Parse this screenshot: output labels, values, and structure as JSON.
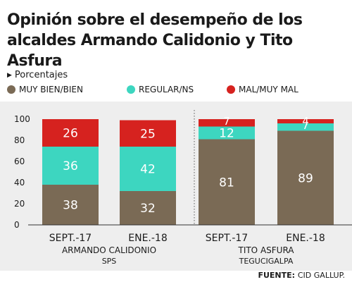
{
  "title_line1": "Opinión sobre el desempeño de los",
  "title_line2": "alcaldes Armando Calidonio y Tito Asfura",
  "units_label": "Porcentajes",
  "legend": [
    {
      "label": "MUY BIEN/BIEN",
      "color": "#7a6a55"
    },
    {
      "label": "REGULAR/NS",
      "color": "#3dd6c0"
    },
    {
      "label": "MAL/MUY MAL",
      "color": "#d6221f"
    }
  ],
  "source_label": "FUENTE:",
  "source_name": "CID GALLUP.",
  "chart_data": {
    "type": "bar",
    "stacked": true,
    "categories": [
      "SEPT.-17",
      "ENE.-18",
      "SEPT.-17",
      "ENE.-18"
    ],
    "groups": [
      {
        "name": "ARMANDO CALIDONIO",
        "subname": "SPS",
        "categories": [
          0,
          1
        ]
      },
      {
        "name": "TITO ASFURA",
        "subname": "TEGUCIGALPA",
        "categories": [
          2,
          3
        ]
      }
    ],
    "series": [
      {
        "name": "MUY BIEN/BIEN",
        "values": [
          38,
          32,
          81,
          89
        ],
        "color": "#7a6a55"
      },
      {
        "name": "REGULAR/NS",
        "values": [
          36,
          42,
          12,
          7
        ],
        "color": "#3dd6c0"
      },
      {
        "name": "MAL/MUY MAL",
        "values": [
          26,
          25,
          7,
          4
        ],
        "color": "#d6221f"
      }
    ],
    "yticks": [
      0,
      20,
      40,
      60,
      80,
      100
    ],
    "ylim": [
      0,
      100
    ]
  }
}
